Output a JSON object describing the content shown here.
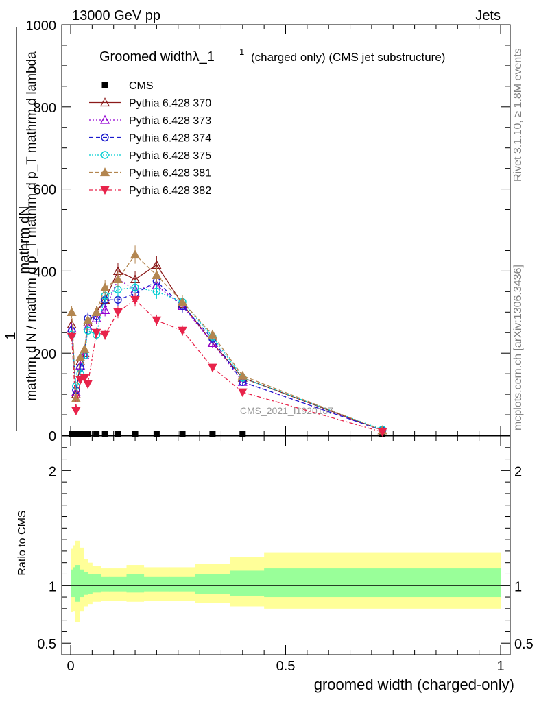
{
  "header": {
    "left": "13000 GeV pp",
    "right": "Jets"
  },
  "side": {
    "rivet": "Rivet 3.1.10, ≥ 1.8M events",
    "mcplots": "mcplots.cern.ch [arXiv:1306.3436]"
  },
  "title": {
    "main": "Groomed widthλ_1",
    "sup": "1",
    "rest": "(charged only) (CMS jet substructure)"
  },
  "ylabel_top": {
    "numer": "mathrm dN",
    "one": "1",
    "denom": "mathrm d N / mathrm d p_T mathrm d p_T mathrm d lambda"
  },
  "ylabel_bottom": "Ratio to CMS",
  "xlabel": "groomed width (charged-only)",
  "watermark": "CMS_2021_I1920187",
  "colors": {
    "p370": "#8b1a1a",
    "p373": "#9400d3",
    "p374": "#1a1acd",
    "p375": "#00ced1",
    "p381": "#b38650",
    "p382": "#e8234a",
    "band_yellow": "#ffff99",
    "band_green": "#99ff99"
  },
  "chart_data": [
    {
      "type": "line",
      "panel": "main",
      "xlim": [
        0,
        1
      ],
      "ylim": [
        0,
        1000
      ],
      "yticks": [
        "0",
        "200",
        "400",
        "600",
        "800",
        "1000"
      ],
      "x": [
        0.0025,
        0.0125,
        0.0225,
        0.0325,
        0.04,
        0.06,
        0.08,
        0.11,
        0.15,
        0.2,
        0.26,
        0.33,
        0.4,
        0.725
      ],
      "series": [
        {
          "name": "CMS",
          "values": [
            0.5,
            0.5,
            0.5,
            0.5,
            0.5,
            0.5,
            0.5,
            0.5,
            0.5,
            0.5,
            0.5,
            0.5,
            0.5,
            0.5
          ]
        },
        {
          "name": "Pythia 6.428 370",
          "values": [
            270,
            100,
            180,
            200,
            275,
            300,
            330,
            400,
            380,
            415,
            320,
            225,
            140,
            12
          ]
        },
        {
          "name": "Pythia 6.428 373",
          "values": [
            260,
            105,
            170,
            195,
            265,
            285,
            305,
            380,
            355,
            365,
            315,
            225,
            130,
            12
          ]
        },
        {
          "name": "Pythia 6.428 374",
          "values": [
            255,
            110,
            165,
            195,
            285,
            290,
            330,
            330,
            345,
            375,
            315,
            235,
            130,
            12
          ]
        },
        {
          "name": "Pythia 6.428 375",
          "values": [
            245,
            120,
            150,
            195,
            255,
            245,
            340,
            355,
            360,
            350,
            325,
            240,
            140,
            14
          ]
        },
        {
          "name": "Pythia 6.428 381",
          "values": [
            300,
            90,
            190,
            210,
            280,
            300,
            360,
            380,
            440,
            390,
            325,
            245,
            145,
            12
          ]
        },
        {
          "name": "Pythia 6.428 382",
          "values": [
            240,
            60,
            135,
            140,
            125,
            250,
            245,
            300,
            330,
            280,
            255,
            165,
            105,
            8
          ]
        }
      ]
    },
    {
      "type": "area",
      "panel": "ratio",
      "xlim": [
        0,
        1
      ],
      "ylim": [
        0.4,
        2.3
      ],
      "yticks": [
        "0.5",
        "1",
        "2"
      ],
      "xticks": [
        "0",
        "0.5",
        "1"
      ],
      "ylabel": "Ratio to CMS",
      "edges": [
        0,
        0.005,
        0.01,
        0.02,
        0.03,
        0.04,
        0.05,
        0.07,
        0.09,
        0.13,
        0.17,
        0.23,
        0.29,
        0.37,
        0.45,
        1.0
      ],
      "band_yellow": [
        [
          0.77,
          1.32
        ],
        [
          0.78,
          1.35
        ],
        [
          0.68,
          1.39
        ],
        [
          0.78,
          1.33
        ],
        [
          0.82,
          1.23
        ],
        [
          0.84,
          1.2
        ],
        [
          0.86,
          1.17
        ],
        [
          0.87,
          1.15
        ],
        [
          0.87,
          1.15
        ],
        [
          0.86,
          1.18
        ],
        [
          0.87,
          1.16
        ],
        [
          0.87,
          1.16
        ],
        [
          0.85,
          1.19
        ],
        [
          0.82,
          1.25
        ],
        [
          0.8,
          1.29
        ]
      ],
      "band_green": [
        [
          0.9,
          1.14
        ],
        [
          0.9,
          1.16
        ],
        [
          0.86,
          1.18
        ],
        [
          0.9,
          1.14
        ],
        [
          0.92,
          1.12
        ],
        [
          0.93,
          1.1
        ],
        [
          0.94,
          1.1
        ],
        [
          0.95,
          1.08
        ],
        [
          0.95,
          1.08
        ],
        [
          0.94,
          1.1
        ],
        [
          0.95,
          1.08
        ],
        [
          0.95,
          1.08
        ],
        [
          0.93,
          1.1
        ],
        [
          0.91,
          1.13
        ],
        [
          0.9,
          1.15
        ]
      ]
    }
  ]
}
